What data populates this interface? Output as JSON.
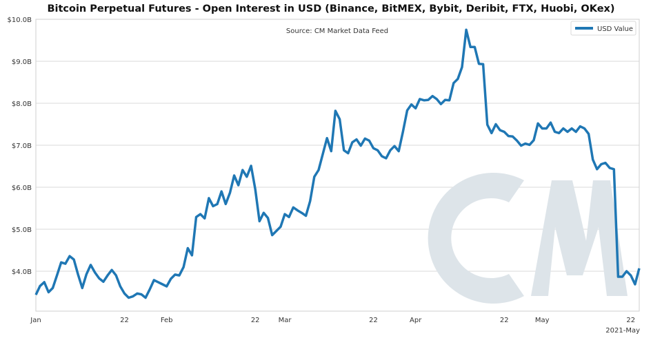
{
  "chart_data": {
    "type": "line",
    "title": "Bitcoin Perpetual Futures - Open Interest in USD (Binance, BitMEX, Bybit, Deribit, FTX, Huobi, OKex)",
    "annotation": "Source: CM Market Data Feed",
    "xlabel": "",
    "ylabel": "",
    "xlim": [
      "2021-01-01",
      "2021-05-24"
    ],
    "ylim": [
      3.05,
      10.0
    ],
    "y_unit": "billion USD",
    "y_ticks": [
      {
        "value": 4,
        "label": "$4.0B"
      },
      {
        "value": 5,
        "label": "$5.0B"
      },
      {
        "value": 6,
        "label": "$6.0B"
      },
      {
        "value": 7,
        "label": "$7.0B"
      },
      {
        "value": 8,
        "label": "$8.0B"
      },
      {
        "value": 9,
        "label": "$9.0B"
      },
      {
        "value": 10,
        "label": "$10.0B"
      }
    ],
    "x_ticks": [
      {
        "date": "2021-01-01",
        "label": "Jan"
      },
      {
        "date": "2021-01-22",
        "label": "22"
      },
      {
        "date": "2021-02-01",
        "label": "Feb"
      },
      {
        "date": "2021-02-22",
        "label": "22"
      },
      {
        "date": "2021-03-01",
        "label": "Mar"
      },
      {
        "date": "2021-03-22",
        "label": "22"
      },
      {
        "date": "2021-04-01",
        "label": "Apr"
      },
      {
        "date": "2021-04-22",
        "label": "22"
      },
      {
        "date": "2021-05-01",
        "label": "May"
      },
      {
        "date": "2021-05-22",
        "label": "22"
      }
    ],
    "x_offset_label": "2021-May",
    "grid": "horizontal",
    "legend_position": "top-right",
    "colors": {
      "line": "#1f77b4",
      "grid": "#d9d9d9",
      "watermark": "#dde4e9"
    },
    "watermark": "CM",
    "series": [
      {
        "name": "USD Value",
        "points": [
          [
            "2021-01-01",
            3.44
          ],
          [
            "2021-01-02",
            3.65
          ],
          [
            "2021-01-03",
            3.74
          ],
          [
            "2021-01-04",
            3.5
          ],
          [
            "2021-01-05",
            3.6
          ],
          [
            "2021-01-06",
            3.9
          ],
          [
            "2021-01-07",
            4.21
          ],
          [
            "2021-01-08",
            4.18
          ],
          [
            "2021-01-09",
            4.36
          ],
          [
            "2021-01-10",
            4.28
          ],
          [
            "2021-01-11",
            3.92
          ],
          [
            "2021-01-12",
            3.6
          ],
          [
            "2021-01-13",
            3.93
          ],
          [
            "2021-01-14",
            4.15
          ],
          [
            "2021-01-15",
            3.97
          ],
          [
            "2021-01-16",
            3.83
          ],
          [
            "2021-01-17",
            3.75
          ],
          [
            "2021-01-18",
            3.9
          ],
          [
            "2021-01-19",
            4.03
          ],
          [
            "2021-01-20",
            3.9
          ],
          [
            "2021-01-21",
            3.64
          ],
          [
            "2021-01-22",
            3.47
          ],
          [
            "2021-01-23",
            3.37
          ],
          [
            "2021-01-24",
            3.4
          ],
          [
            "2021-01-25",
            3.47
          ],
          [
            "2021-01-26",
            3.45
          ],
          [
            "2021-01-27",
            3.37
          ],
          [
            "2021-01-28",
            3.57
          ],
          [
            "2021-01-29",
            3.79
          ],
          [
            "2021-01-30",
            3.74
          ],
          [
            "2021-01-31",
            3.69
          ],
          [
            "2021-02-01",
            3.64
          ],
          [
            "2021-02-02",
            3.82
          ],
          [
            "2021-02-03",
            3.92
          ],
          [
            "2021-02-04",
            3.9
          ],
          [
            "2021-02-05",
            4.1
          ],
          [
            "2021-02-06",
            4.55
          ],
          [
            "2021-02-07",
            4.38
          ],
          [
            "2021-02-08",
            5.29
          ],
          [
            "2021-02-09",
            5.36
          ],
          [
            "2021-02-10",
            5.26
          ],
          [
            "2021-02-11",
            5.74
          ],
          [
            "2021-02-12",
            5.55
          ],
          [
            "2021-02-13",
            5.6
          ],
          [
            "2021-02-14",
            5.9
          ],
          [
            "2021-02-15",
            5.6
          ],
          [
            "2021-02-16",
            5.87
          ],
          [
            "2021-02-17",
            6.28
          ],
          [
            "2021-02-18",
            6.05
          ],
          [
            "2021-02-19",
            6.41
          ],
          [
            "2021-02-20",
            6.25
          ],
          [
            "2021-02-21",
            6.51
          ],
          [
            "2021-02-22",
            5.95
          ],
          [
            "2021-02-23",
            5.19
          ],
          [
            "2021-02-24",
            5.39
          ],
          [
            "2021-02-25",
            5.27
          ],
          [
            "2021-02-26",
            4.86
          ],
          [
            "2021-02-27",
            4.96
          ],
          [
            "2021-02-28",
            5.06
          ],
          [
            "2021-03-01",
            5.36
          ],
          [
            "2021-03-02",
            5.29
          ],
          [
            "2021-03-03",
            5.52
          ],
          [
            "2021-03-04",
            5.45
          ],
          [
            "2021-03-05",
            5.39
          ],
          [
            "2021-03-06",
            5.32
          ],
          [
            "2021-03-07",
            5.67
          ],
          [
            "2021-03-08",
            6.25
          ],
          [
            "2021-03-09",
            6.41
          ],
          [
            "2021-03-10",
            6.79
          ],
          [
            "2021-03-11",
            7.17
          ],
          [
            "2021-03-12",
            6.86
          ],
          [
            "2021-03-13",
            7.82
          ],
          [
            "2021-03-14",
            7.62
          ],
          [
            "2021-03-15",
            6.88
          ],
          [
            "2021-03-16",
            6.81
          ],
          [
            "2021-03-17",
            7.07
          ],
          [
            "2021-03-18",
            7.14
          ],
          [
            "2021-03-19",
            6.99
          ],
          [
            "2021-03-20",
            7.16
          ],
          [
            "2021-03-21",
            7.11
          ],
          [
            "2021-03-22",
            6.93
          ],
          [
            "2021-03-23",
            6.88
          ],
          [
            "2021-03-24",
            6.74
          ],
          [
            "2021-03-25",
            6.69
          ],
          [
            "2021-03-26",
            6.88
          ],
          [
            "2021-03-27",
            6.98
          ],
          [
            "2021-03-28",
            6.86
          ],
          [
            "2021-03-29",
            7.32
          ],
          [
            "2021-03-30",
            7.83
          ],
          [
            "2021-03-31",
            7.97
          ],
          [
            "2021-04-01",
            7.88
          ],
          [
            "2021-04-02",
            8.1
          ],
          [
            "2021-04-03",
            8.07
          ],
          [
            "2021-04-04",
            8.08
          ],
          [
            "2021-04-05",
            8.17
          ],
          [
            "2021-04-06",
            8.1
          ],
          [
            "2021-04-07",
            7.98
          ],
          [
            "2021-04-08",
            8.08
          ],
          [
            "2021-04-09",
            8.07
          ],
          [
            "2021-04-10",
            8.48
          ],
          [
            "2021-04-11",
            8.58
          ],
          [
            "2021-04-12",
            8.86
          ],
          [
            "2021-04-13",
            9.75
          ],
          [
            "2021-04-14",
            9.34
          ],
          [
            "2021-04-15",
            9.34
          ],
          [
            "2021-04-16",
            8.94
          ],
          [
            "2021-04-17",
            8.93
          ],
          [
            "2021-04-18",
            7.49
          ],
          [
            "2021-04-19",
            7.29
          ],
          [
            "2021-04-20",
            7.5
          ],
          [
            "2021-04-21",
            7.36
          ],
          [
            "2021-04-22",
            7.32
          ],
          [
            "2021-04-23",
            7.22
          ],
          [
            "2021-04-24",
            7.21
          ],
          [
            "2021-04-25",
            7.11
          ],
          [
            "2021-04-26",
            6.99
          ],
          [
            "2021-04-27",
            7.04
          ],
          [
            "2021-04-28",
            7.01
          ],
          [
            "2021-04-29",
            7.12
          ],
          [
            "2021-04-30",
            7.52
          ],
          [
            "2021-05-01",
            7.4
          ],
          [
            "2021-05-02",
            7.4
          ],
          [
            "2021-05-03",
            7.54
          ],
          [
            "2021-05-04",
            7.32
          ],
          [
            "2021-05-05",
            7.29
          ],
          [
            "2021-05-06",
            7.4
          ],
          [
            "2021-05-07",
            7.32
          ],
          [
            "2021-05-08",
            7.4
          ],
          [
            "2021-05-09",
            7.32
          ],
          [
            "2021-05-10",
            7.45
          ],
          [
            "2021-05-11",
            7.4
          ],
          [
            "2021-05-12",
            7.27
          ],
          [
            "2021-05-13",
            6.66
          ],
          [
            "2021-05-14",
            6.43
          ],
          [
            "2021-05-15",
            6.55
          ],
          [
            "2021-05-16",
            6.58
          ],
          [
            "2021-05-17",
            6.46
          ],
          [
            "2021-05-18",
            6.43
          ],
          [
            "2021-05-19",
            3.87
          ],
          [
            "2021-05-20",
            3.87
          ],
          [
            "2021-05-21",
            4.0
          ],
          [
            "2021-05-22",
            3.9
          ],
          [
            "2021-05-23",
            3.69
          ],
          [
            "2021-05-24",
            4.07
          ]
        ]
      }
    ]
  }
}
